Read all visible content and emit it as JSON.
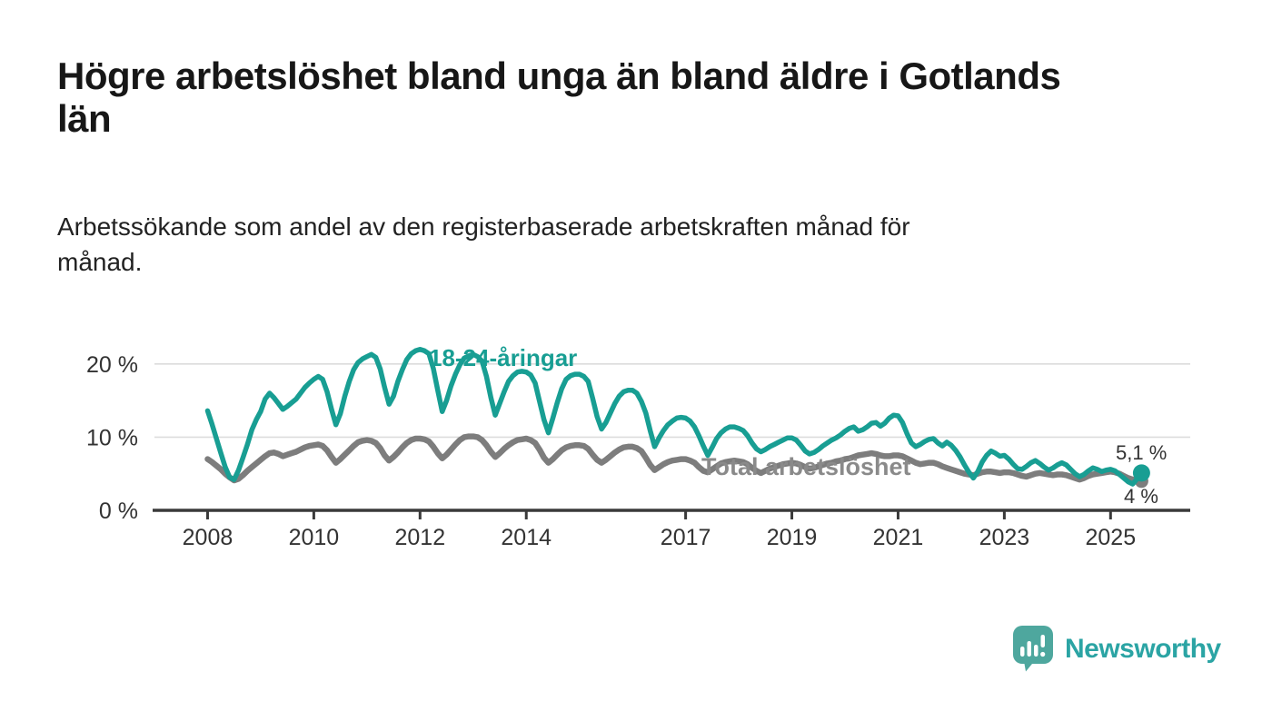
{
  "title": "Högre arbetslöshet bland unga än bland äldre i Gotlands\nlän",
  "subtitle": "Arbetssökande som andel av den registerbaserade arbetskraften månad för\nmånad.",
  "footer": {
    "brand": "Newsworthy"
  },
  "colors": {
    "accent_teal": "#189e93",
    "line_gray": "#7d7d7d",
    "label_gray": "#8a8a8a",
    "axis": "#3a3a3a",
    "grid": "#dcdcdc",
    "text": "#333333",
    "logo_bubble": "#4ea79e",
    "logo_text": "#2ba4a4"
  },
  "chart_data": {
    "type": "line",
    "title": "Högre arbetslöshet bland unga än bland äldre i Gotlands län",
    "subtitle": "Arbetssökande som andel av den registerbaserade arbetskraften månad för månad.",
    "x_unit": "month",
    "x_start": {
      "year": 2008,
      "month": 1
    },
    "x_tick_values": [
      2008,
      2010,
      2012,
      2014,
      2017,
      2019,
      2021,
      2023,
      2025
    ],
    "x_tick_labels": [
      "2008",
      "2010",
      "2012",
      "2014",
      "2017",
      "2019",
      "2021",
      "2023",
      "2025"
    ],
    "y_ticks": [
      {
        "value": 0,
        "label": "0 %"
      },
      {
        "value": 10,
        "label": "10 %"
      },
      {
        "value": 20,
        "label": "20 %"
      }
    ],
    "xlim": [
      2007.0,
      2026.5
    ],
    "ylim": [
      0,
      23.2
    ],
    "grid": "horizontal-only",
    "legend": "inline-series-labels",
    "series": [
      {
        "id": "total",
        "name": "Total arbetslöshet",
        "color": "#7d7d7d",
        "end_label": "4 %",
        "end_value": 4.0,
        "values": [
          7.0,
          6.6,
          6.1,
          5.6,
          5.0,
          4.5,
          4.1,
          4.3,
          4.8,
          5.4,
          5.9,
          6.4,
          6.9,
          7.4,
          7.8,
          7.9,
          7.7,
          7.4,
          7.6,
          7.8,
          8.0,
          8.3,
          8.6,
          8.8,
          8.9,
          9.0,
          8.8,
          8.2,
          7.3,
          6.5,
          7.0,
          7.6,
          8.2,
          8.8,
          9.3,
          9.5,
          9.6,
          9.5,
          9.2,
          8.5,
          7.5,
          6.8,
          7.3,
          7.9,
          8.6,
          9.2,
          9.6,
          9.8,
          9.8,
          9.7,
          9.4,
          8.7,
          7.8,
          7.1,
          7.6,
          8.3,
          9.0,
          9.6,
          10.0,
          10.1,
          10.1,
          10.0,
          9.6,
          8.9,
          8.0,
          7.3,
          7.8,
          8.4,
          8.9,
          9.3,
          9.6,
          9.7,
          9.8,
          9.6,
          9.2,
          8.3,
          7.2,
          6.5,
          7.0,
          7.6,
          8.2,
          8.6,
          8.8,
          8.9,
          8.9,
          8.8,
          8.4,
          7.6,
          6.9,
          6.5,
          6.9,
          7.4,
          7.9,
          8.3,
          8.6,
          8.7,
          8.7,
          8.5,
          8.1,
          7.2,
          6.2,
          5.5,
          5.9,
          6.3,
          6.6,
          6.8,
          6.9,
          7.0,
          7.0,
          6.8,
          6.5,
          5.9,
          5.4,
          5.2,
          5.6,
          6.0,
          6.4,
          6.6,
          6.7,
          6.8,
          6.7,
          6.6,
          6.3,
          5.8,
          5.4,
          5.1,
          5.4,
          5.7,
          5.9,
          6.1,
          6.3,
          6.4,
          6.5,
          6.4,
          6.2,
          5.9,
          5.7,
          5.8,
          6.0,
          6.2,
          6.4,
          6.5,
          6.7,
          6.8,
          7.0,
          7.1,
          7.3,
          7.5,
          7.6,
          7.7,
          7.8,
          7.7,
          7.5,
          7.4,
          7.4,
          7.5,
          7.5,
          7.4,
          7.1,
          6.8,
          6.5,
          6.3,
          6.4,
          6.5,
          6.5,
          6.3,
          6.0,
          5.8,
          5.6,
          5.4,
          5.2,
          5.0,
          4.9,
          4.8,
          5.0,
          5.2,
          5.3,
          5.3,
          5.2,
          5.1,
          5.2,
          5.2,
          5.1,
          4.9,
          4.7,
          4.6,
          4.8,
          5.0,
          5.1,
          5.0,
          4.9,
          4.8,
          4.9,
          4.9,
          4.8,
          4.6,
          4.4,
          4.2,
          4.4,
          4.7,
          4.9,
          5.0,
          5.1,
          5.2,
          5.3,
          5.2,
          5.0,
          4.7,
          4.4,
          4.2,
          4.1,
          4.0
        ]
      },
      {
        "id": "18-24",
        "name": "18-24-åringar",
        "color": "#189e93",
        "end_label": "5,1 %",
        "end_value": 5.1,
        "values": [
          13.6,
          11.8,
          9.8,
          7.8,
          5.9,
          4.5,
          4.2,
          5.5,
          7.2,
          9.0,
          11.0,
          12.4,
          13.5,
          15.2,
          16.0,
          15.4,
          14.6,
          13.8,
          14.2,
          14.7,
          15.2,
          16.0,
          16.8,
          17.4,
          17.9,
          18.3,
          17.9,
          16.2,
          13.8,
          11.7,
          13.2,
          15.6,
          17.6,
          19.2,
          20.2,
          20.7,
          21.0,
          21.3,
          20.9,
          19.3,
          16.8,
          14.5,
          15.6,
          17.6,
          19.2,
          20.6,
          21.4,
          21.8,
          22.0,
          21.8,
          21.4,
          19.4,
          16.4,
          13.5,
          15.0,
          17.0,
          18.6,
          19.9,
          20.8,
          21.1,
          21.3,
          21.0,
          20.4,
          18.3,
          15.4,
          13.0,
          14.6,
          16.2,
          17.6,
          18.4,
          18.9,
          19.0,
          18.9,
          18.5,
          17.4,
          14.9,
          12.4,
          10.6,
          12.6,
          14.7,
          16.6,
          17.9,
          18.4,
          18.6,
          18.6,
          18.3,
          17.6,
          15.3,
          12.8,
          11.1,
          12.0,
          13.3,
          14.6,
          15.6,
          16.2,
          16.4,
          16.4,
          16.0,
          14.9,
          13.3,
          10.9,
          8.7,
          9.9,
          10.9,
          11.7,
          12.2,
          12.6,
          12.7,
          12.6,
          12.2,
          11.4,
          10.2,
          8.8,
          7.5,
          8.6,
          9.8,
          10.6,
          11.1,
          11.4,
          11.4,
          11.2,
          10.9,
          10.2,
          9.2,
          8.4,
          8.0,
          8.3,
          8.7,
          9.0,
          9.3,
          9.6,
          9.9,
          9.9,
          9.6,
          8.9,
          8.1,
          7.7,
          7.9,
          8.3,
          8.8,
          9.2,
          9.6,
          9.9,
          10.3,
          10.8,
          11.2,
          11.4,
          10.8,
          11.0,
          11.4,
          11.9,
          12.0,
          11.5,
          11.9,
          12.6,
          13.0,
          12.9,
          12.0,
          10.5,
          9.2,
          8.7,
          9.0,
          9.4,
          9.7,
          9.8,
          9.2,
          8.8,
          9.3,
          8.9,
          8.2,
          7.3,
          6.2,
          5.2,
          4.4,
          5.3,
          6.6,
          7.5,
          8.1,
          7.8,
          7.4,
          7.5,
          7.0,
          6.3,
          5.7,
          5.6,
          6.0,
          6.5,
          6.8,
          6.4,
          5.9,
          5.5,
          5.8,
          6.2,
          6.5,
          6.2,
          5.6,
          5.0,
          4.6,
          4.9,
          5.4,
          5.8,
          5.6,
          5.3,
          5.5,
          5.6,
          5.4,
          4.9,
          4.4,
          3.9,
          3.6,
          4.3,
          5.1
        ]
      }
    ]
  }
}
